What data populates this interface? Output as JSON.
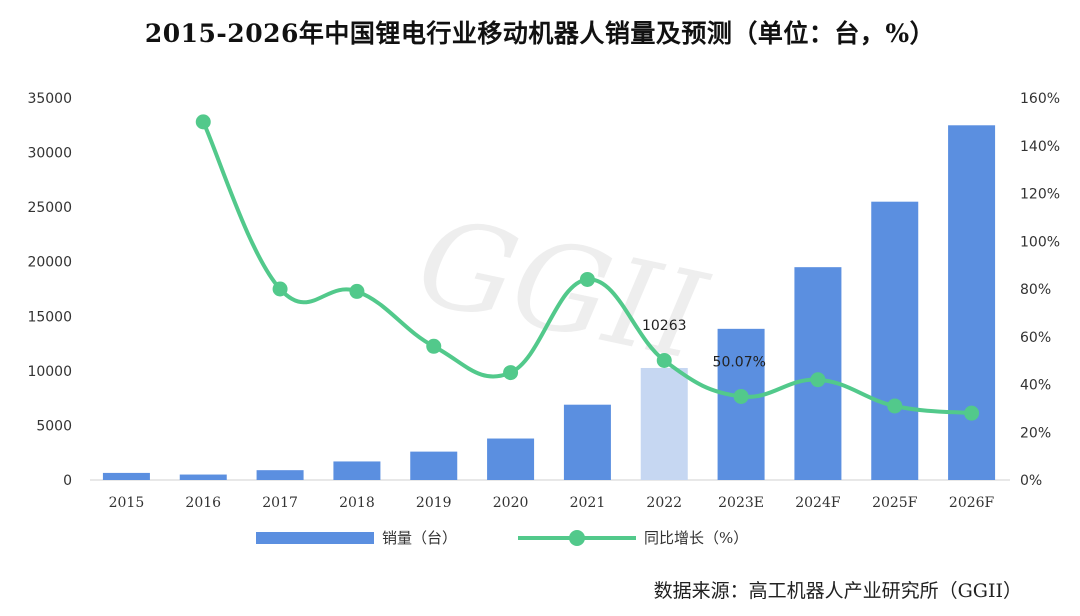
{
  "title": "2015-2026年中国锂电行业移动机器人销量及预测（单位：台，%）",
  "source": "数据来源：高工机器人产业研究所（GGII）",
  "watermark": "GGII",
  "colors": {
    "bar": "#5b8fe0",
    "bar_highlight": "#c6d7f2",
    "line": "#52c98b"
  },
  "chart_data": {
    "type": "bar+line",
    "categories": [
      "2015",
      "2016",
      "2017",
      "2018",
      "2019",
      "2020",
      "2021",
      "2022",
      "2023E",
      "2024F",
      "2025F",
      "2026F"
    ],
    "series": [
      {
        "name": "销量（台）",
        "type": "bar",
        "axis": "left",
        "values": [
          650,
          500,
          900,
          1700,
          2600,
          3800,
          6900,
          10263,
          13850,
          19500,
          25500,
          32500
        ]
      },
      {
        "name": "同比增长（%）",
        "type": "line",
        "axis": "right",
        "values": [
          null,
          150,
          80,
          79,
          56,
          45,
          84,
          50.07,
          35,
          42,
          31,
          28
        ]
      }
    ],
    "highlight_index": 7,
    "data_labels": [
      {
        "series": 0,
        "index": 7,
        "text": "10263"
      },
      {
        "series": 1,
        "index": 7,
        "text": "50.07%"
      }
    ],
    "left_axis": {
      "ylim": [
        0,
        35000
      ],
      "ticks": [
        "0",
        "5000",
        "10000",
        "15000",
        "20000",
        "25000",
        "30000",
        "35000"
      ]
    },
    "right_axis": {
      "ylim": [
        0,
        160
      ],
      "ticks": [
        "0%",
        "20%",
        "40%",
        "60%",
        "80%",
        "100%",
        "120%",
        "140%",
        "160%"
      ]
    },
    "legend": {
      "position": "bottom",
      "entries": [
        "销量（台）",
        "同比增长（%）"
      ]
    },
    "grid": false
  }
}
